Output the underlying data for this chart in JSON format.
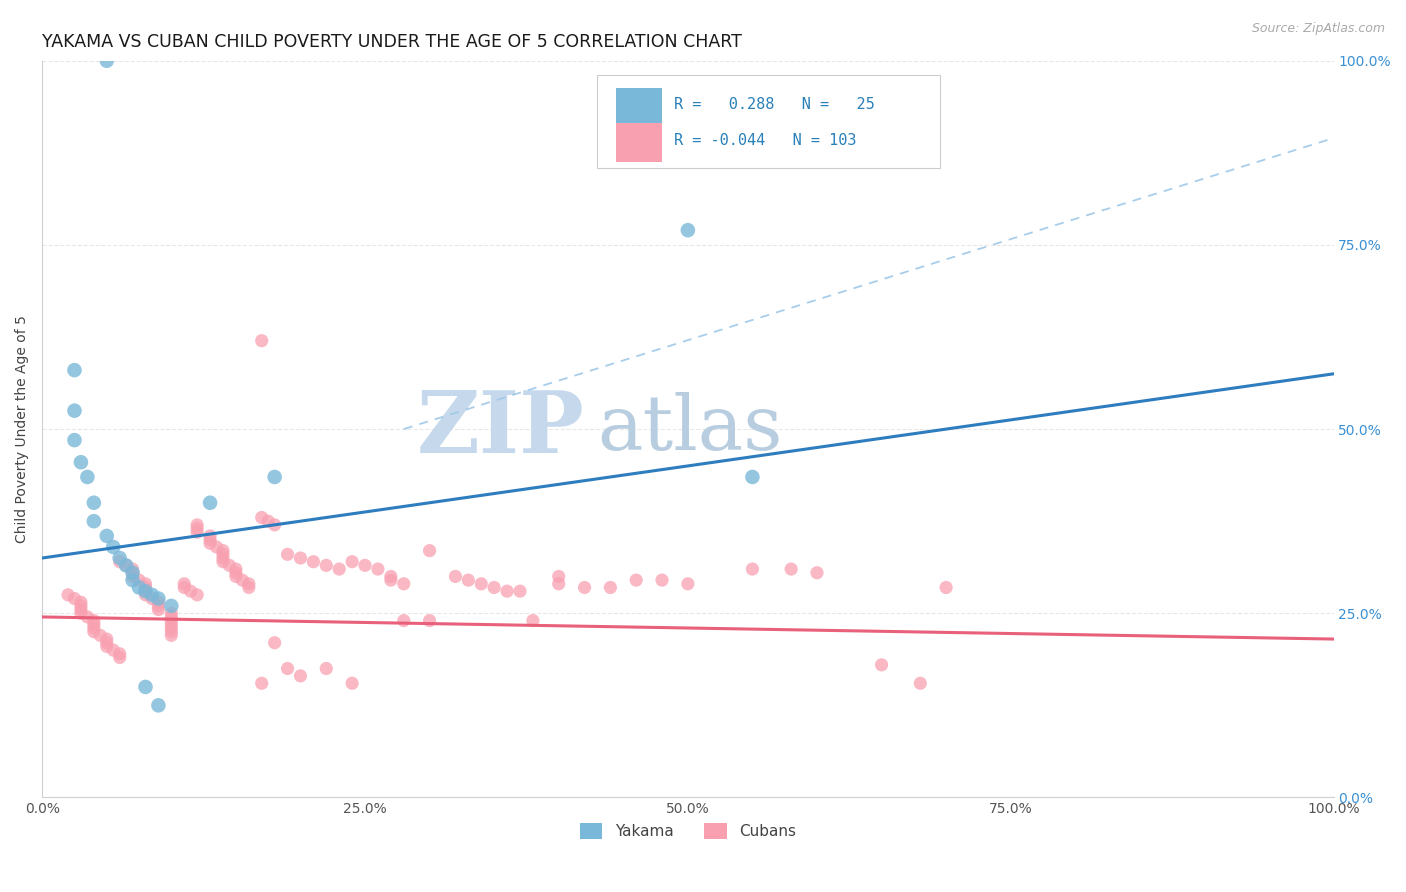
{
  "title": "YAKAMA VS CUBAN CHILD POVERTY UNDER THE AGE OF 5 CORRELATION CHART",
  "source": "Source: ZipAtlas.com",
  "ylabel": "Child Poverty Under the Age of 5",
  "xlim": [
    0,
    1
  ],
  "ylim": [
    0,
    1
  ],
  "xticks": [
    0,
    0.25,
    0.5,
    0.75,
    1.0
  ],
  "yticks": [
    0,
    0.25,
    0.5,
    0.75,
    1.0
  ],
  "xticklabels": [
    "0.0%",
    "25.0%",
    "50.0%",
    "75.0%",
    "100.0%"
  ],
  "yticklabels_right": [
    "0.0%",
    "25.0%",
    "50.0%",
    "75.0%",
    "100.0%"
  ],
  "yakama_color": "#7ab8d9",
  "cuban_color": "#f8a0b0",
  "yakama_R": 0.288,
  "yakama_N": 25,
  "cuban_R": -0.044,
  "cuban_N": 103,
  "legend_text_color": "#2980b9",
  "watermark_zip": "ZIP",
  "watermark_atlas": "atlas",
  "watermark_color_zip": "#c5d8ec",
  "watermark_color_atlas": "#b8cee0",
  "title_fontsize": 12.5,
  "axis_label_fontsize": 10,
  "tick_fontsize": 10,
  "yakama_line_color": "#2e7dbe",
  "cuban_line_color": "#e8607a",
  "dashed_line_color": "#9ec8e8",
  "grid_color": "#e8e8e8",
  "yakama_line_x": [
    0.0,
    1.0
  ],
  "yakama_line_y": [
    0.325,
    0.575
  ],
  "cuban_line_x": [
    0.0,
    1.0
  ],
  "cuban_line_y": [
    0.245,
    0.215
  ],
  "dashed_line_x": [
    0.28,
    1.0
  ],
  "dashed_line_y": [
    0.5,
    0.895
  ],
  "yakama_points": [
    [
      0.05,
      1.0
    ],
    [
      0.025,
      0.58
    ],
    [
      0.025,
      0.525
    ],
    [
      0.025,
      0.485
    ],
    [
      0.03,
      0.455
    ],
    [
      0.035,
      0.435
    ],
    [
      0.04,
      0.4
    ],
    [
      0.04,
      0.375
    ],
    [
      0.05,
      0.355
    ],
    [
      0.055,
      0.34
    ],
    [
      0.06,
      0.325
    ],
    [
      0.065,
      0.315
    ],
    [
      0.07,
      0.305
    ],
    [
      0.07,
      0.295
    ],
    [
      0.075,
      0.285
    ],
    [
      0.08,
      0.28
    ],
    [
      0.085,
      0.275
    ],
    [
      0.09,
      0.27
    ],
    [
      0.1,
      0.26
    ],
    [
      0.13,
      0.4
    ],
    [
      0.18,
      0.435
    ],
    [
      0.5,
      0.77
    ],
    [
      0.55,
      0.435
    ],
    [
      0.08,
      0.15
    ],
    [
      0.09,
      0.125
    ]
  ],
  "cuban_points": [
    [
      0.02,
      0.275
    ],
    [
      0.025,
      0.27
    ],
    [
      0.03,
      0.265
    ],
    [
      0.03,
      0.26
    ],
    [
      0.03,
      0.255
    ],
    [
      0.03,
      0.25
    ],
    [
      0.035,
      0.245
    ],
    [
      0.04,
      0.24
    ],
    [
      0.04,
      0.235
    ],
    [
      0.04,
      0.23
    ],
    [
      0.04,
      0.225
    ],
    [
      0.045,
      0.22
    ],
    [
      0.05,
      0.215
    ],
    [
      0.05,
      0.21
    ],
    [
      0.05,
      0.205
    ],
    [
      0.055,
      0.2
    ],
    [
      0.06,
      0.195
    ],
    [
      0.06,
      0.19
    ],
    [
      0.06,
      0.32
    ],
    [
      0.065,
      0.315
    ],
    [
      0.07,
      0.31
    ],
    [
      0.07,
      0.305
    ],
    [
      0.07,
      0.3
    ],
    [
      0.075,
      0.295
    ],
    [
      0.08,
      0.29
    ],
    [
      0.08,
      0.285
    ],
    [
      0.08,
      0.28
    ],
    [
      0.08,
      0.275
    ],
    [
      0.085,
      0.27
    ],
    [
      0.09,
      0.265
    ],
    [
      0.09,
      0.26
    ],
    [
      0.09,
      0.255
    ],
    [
      0.1,
      0.25
    ],
    [
      0.1,
      0.245
    ],
    [
      0.1,
      0.24
    ],
    [
      0.1,
      0.235
    ],
    [
      0.1,
      0.23
    ],
    [
      0.1,
      0.225
    ],
    [
      0.1,
      0.22
    ],
    [
      0.11,
      0.29
    ],
    [
      0.11,
      0.285
    ],
    [
      0.115,
      0.28
    ],
    [
      0.12,
      0.275
    ],
    [
      0.12,
      0.37
    ],
    [
      0.12,
      0.365
    ],
    [
      0.12,
      0.36
    ],
    [
      0.13,
      0.355
    ],
    [
      0.13,
      0.35
    ],
    [
      0.13,
      0.345
    ],
    [
      0.135,
      0.34
    ],
    [
      0.14,
      0.335
    ],
    [
      0.14,
      0.33
    ],
    [
      0.14,
      0.325
    ],
    [
      0.14,
      0.32
    ],
    [
      0.145,
      0.315
    ],
    [
      0.15,
      0.31
    ],
    [
      0.15,
      0.305
    ],
    [
      0.15,
      0.3
    ],
    [
      0.155,
      0.295
    ],
    [
      0.16,
      0.29
    ],
    [
      0.16,
      0.285
    ],
    [
      0.17,
      0.62
    ],
    [
      0.17,
      0.155
    ],
    [
      0.17,
      0.38
    ],
    [
      0.175,
      0.375
    ],
    [
      0.18,
      0.37
    ],
    [
      0.18,
      0.21
    ],
    [
      0.19,
      0.33
    ],
    [
      0.19,
      0.175
    ],
    [
      0.2,
      0.325
    ],
    [
      0.2,
      0.165
    ],
    [
      0.21,
      0.32
    ],
    [
      0.22,
      0.315
    ],
    [
      0.22,
      0.175
    ],
    [
      0.23,
      0.31
    ],
    [
      0.24,
      0.32
    ],
    [
      0.24,
      0.155
    ],
    [
      0.25,
      0.315
    ],
    [
      0.26,
      0.31
    ],
    [
      0.27,
      0.3
    ],
    [
      0.27,
      0.295
    ],
    [
      0.28,
      0.29
    ],
    [
      0.28,
      0.24
    ],
    [
      0.3,
      0.335
    ],
    [
      0.3,
      0.24
    ],
    [
      0.32,
      0.3
    ],
    [
      0.33,
      0.295
    ],
    [
      0.34,
      0.29
    ],
    [
      0.35,
      0.285
    ],
    [
      0.36,
      0.28
    ],
    [
      0.37,
      0.28
    ],
    [
      0.38,
      0.24
    ],
    [
      0.4,
      0.3
    ],
    [
      0.4,
      0.29
    ],
    [
      0.42,
      0.285
    ],
    [
      0.44,
      0.285
    ],
    [
      0.46,
      0.295
    ],
    [
      0.48,
      0.295
    ],
    [
      0.5,
      0.29
    ],
    [
      0.55,
      0.31
    ],
    [
      0.58,
      0.31
    ],
    [
      0.6,
      0.305
    ],
    [
      0.65,
      0.18
    ],
    [
      0.68,
      0.155
    ],
    [
      0.7,
      0.285
    ]
  ]
}
